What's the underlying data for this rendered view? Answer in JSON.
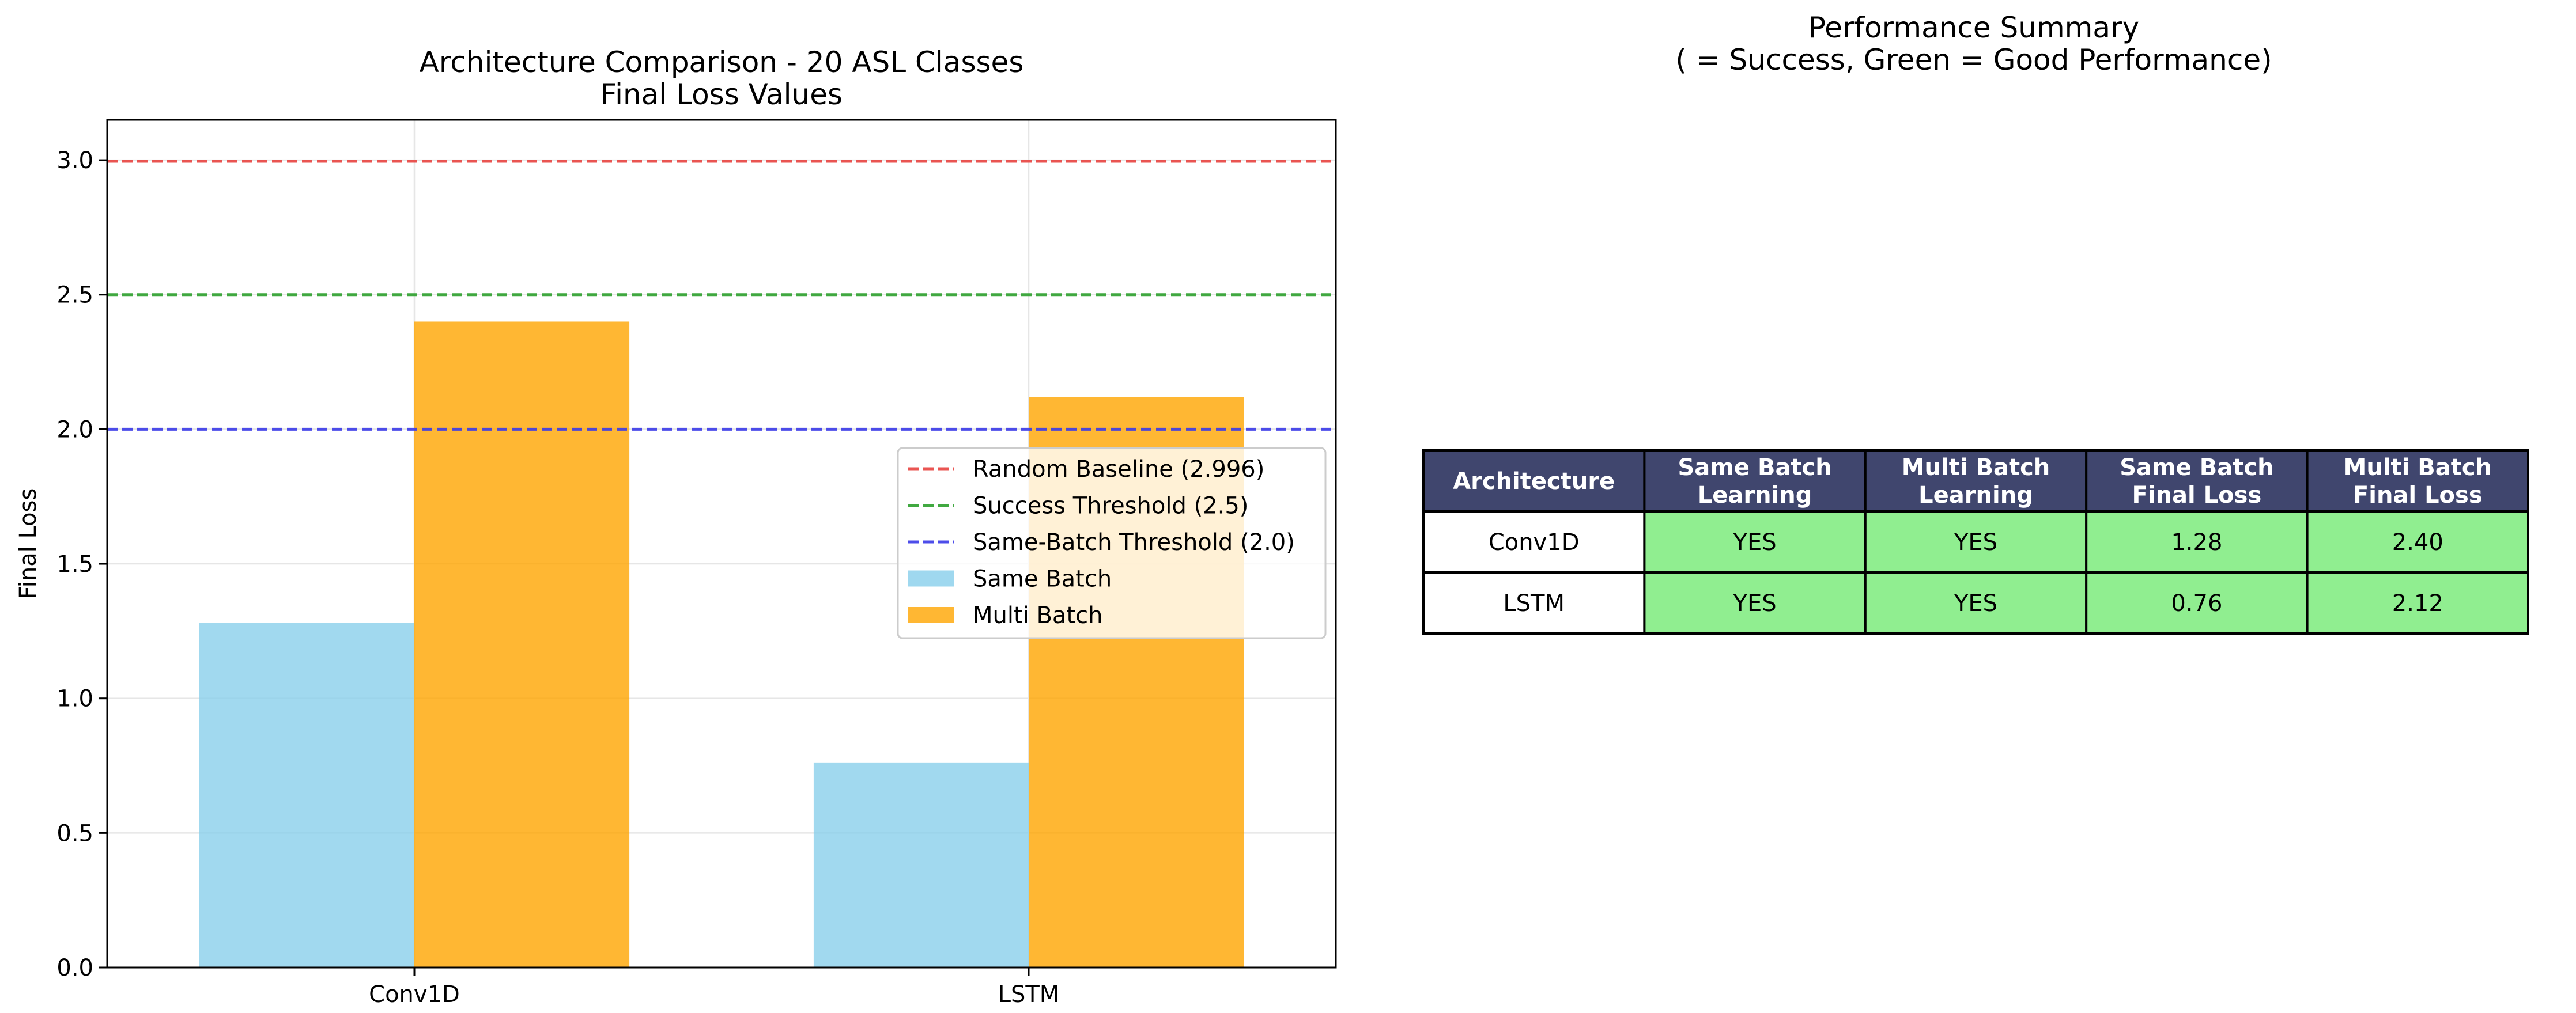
{
  "chart_data": [
    {
      "type": "bar",
      "title": "Architecture Comparison - 20 ASL Classes\nFinal Loss Values",
      "xlabel": "",
      "ylabel": "Final Loss",
      "categories": [
        "Conv1D",
        "LSTM"
      ],
      "ylim": [
        0,
        3.15
      ],
      "yticks": [
        0.0,
        0.5,
        1.0,
        1.5,
        2.0,
        2.5,
        3.0
      ],
      "ytick_labels": [
        "0.0",
        "0.5",
        "1.0",
        "1.5",
        "2.0",
        "2.5",
        "3.0"
      ],
      "grid": true,
      "legend_position": "center-right",
      "series": [
        {
          "name": "Same Batch",
          "values": [
            1.28,
            0.76
          ],
          "color": "#87ceeb"
        },
        {
          "name": "Multi Batch",
          "values": [
            2.4,
            2.12
          ],
          "color": "#ffa500"
        }
      ],
      "reference_lines": [
        {
          "name": "Random Baseline (2.996)",
          "value": 2.996,
          "color": "#e8423f"
        },
        {
          "name": "Success Threshold (2.5)",
          "value": 2.5,
          "color": "#2ca02c"
        },
        {
          "name": "Same-Batch Threshold (2.0)",
          "value": 2.0,
          "color": "#3a3ae8"
        }
      ]
    },
    {
      "type": "table",
      "title": "Performance Summary\n( = Success, Green = Good Performance)",
      "columns": [
        "Architecture",
        "Same Batch\nLearning",
        "Multi Batch\nLearning",
        "Same Batch\nFinal Loss",
        "Multi Batch\nFinal Loss"
      ],
      "rows": [
        [
          "Conv1D",
          "YES",
          "YES",
          "1.28",
          "2.40"
        ],
        [
          "LSTM",
          "YES",
          "YES",
          "0.76",
          "2.12"
        ]
      ],
      "header_color": "#40466e",
      "good_color": "#90ee90",
      "plain_color": "#ffffff"
    }
  ]
}
